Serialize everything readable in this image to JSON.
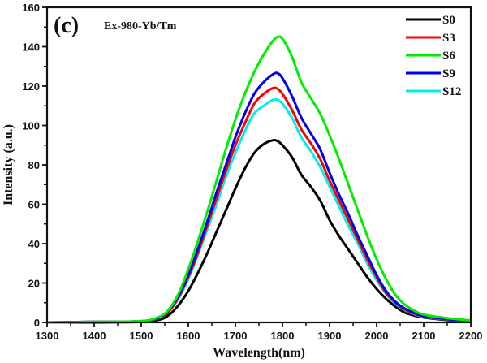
{
  "chart_data": {
    "type": "line",
    "title": "",
    "panel_label": "(c)",
    "annotation": "Ex-980-Yb/Tm",
    "xlabel": "Wavelength(nm)",
    "ylabel": "Intensity (a.u.)",
    "xlim": [
      1300,
      2200
    ],
    "ylim": [
      0,
      160
    ],
    "xticks": [
      1300,
      1400,
      1500,
      1600,
      1700,
      1800,
      1900,
      2000,
      2100,
      2200
    ],
    "yticks": [
      0,
      20,
      40,
      60,
      80,
      100,
      120,
      140,
      160
    ],
    "grid": false,
    "legend_position": "top-right",
    "x": [
      1300,
      1400,
      1500,
      1540,
      1560,
      1580,
      1600,
      1620,
      1640,
      1660,
      1680,
      1700,
      1720,
      1740,
      1760,
      1780,
      1790,
      1800,
      1820,
      1840,
      1860,
      1880,
      1900,
      1920,
      1940,
      1960,
      1980,
      2000,
      2020,
      2040,
      2060,
      2080,
      2100,
      2150,
      2200
    ],
    "series": [
      {
        "name": "S0",
        "color": "#000000",
        "values": [
          0,
          0,
          0.3,
          1.5,
          4,
          9,
          16,
          25,
          35,
          46,
          57,
          68,
          78,
          86,
          90.5,
          92.5,
          92,
          90,
          84,
          75,
          69,
          62,
          52,
          44,
          37,
          30,
          23,
          17,
          12,
          8,
          5,
          3.5,
          2.5,
          1.2,
          0.4
        ]
      },
      {
        "name": "S3",
        "color": "#ff0000",
        "values": [
          0,
          0.3,
          0.6,
          2.5,
          6,
          13,
          23,
          35,
          49,
          63,
          77,
          90,
          101,
          111,
          116,
          119,
          118.5,
          116,
          108,
          98,
          91,
          83,
          72,
          62,
          52,
          42,
          32,
          23,
          15,
          10,
          6.5,
          4.5,
          3,
          1.6,
          0.8
        ]
      },
      {
        "name": "S6",
        "color": "#00ee00",
        "values": [
          0,
          0.3,
          0.7,
          3,
          7,
          15,
          27,
          41,
          56,
          72,
          88,
          103,
          116,
          127,
          136,
          143,
          145,
          144,
          135,
          122,
          114,
          106,
          95,
          83,
          70,
          57,
          44,
          32,
          22,
          14,
          9,
          6,
          4,
          2.2,
          1
        ]
      },
      {
        "name": "S9",
        "color": "#0000ee",
        "values": [
          0,
          0.3,
          0.6,
          2.6,
          6.5,
          14,
          24,
          37,
          51,
          66,
          80,
          94,
          106,
          116,
          122,
          126,
          126.5,
          124,
          115,
          104,
          96,
          88,
          76,
          65,
          55,
          44,
          34,
          24,
          16,
          10.5,
          7,
          4.8,
          3.2,
          1.7,
          0.8
        ]
      },
      {
        "name": "S12",
        "color": "#00eeee",
        "values": [
          0,
          0.3,
          0.6,
          2.4,
          6,
          12.5,
          22,
          34,
          47,
          60,
          74,
          86,
          97,
          106,
          110,
          113,
          113,
          111,
          104,
          94,
          87,
          79,
          69,
          59,
          49,
          40,
          30,
          21.5,
          14.5,
          9.5,
          6.2,
          4.2,
          2.8,
          1.5,
          0.7
        ]
      }
    ]
  }
}
